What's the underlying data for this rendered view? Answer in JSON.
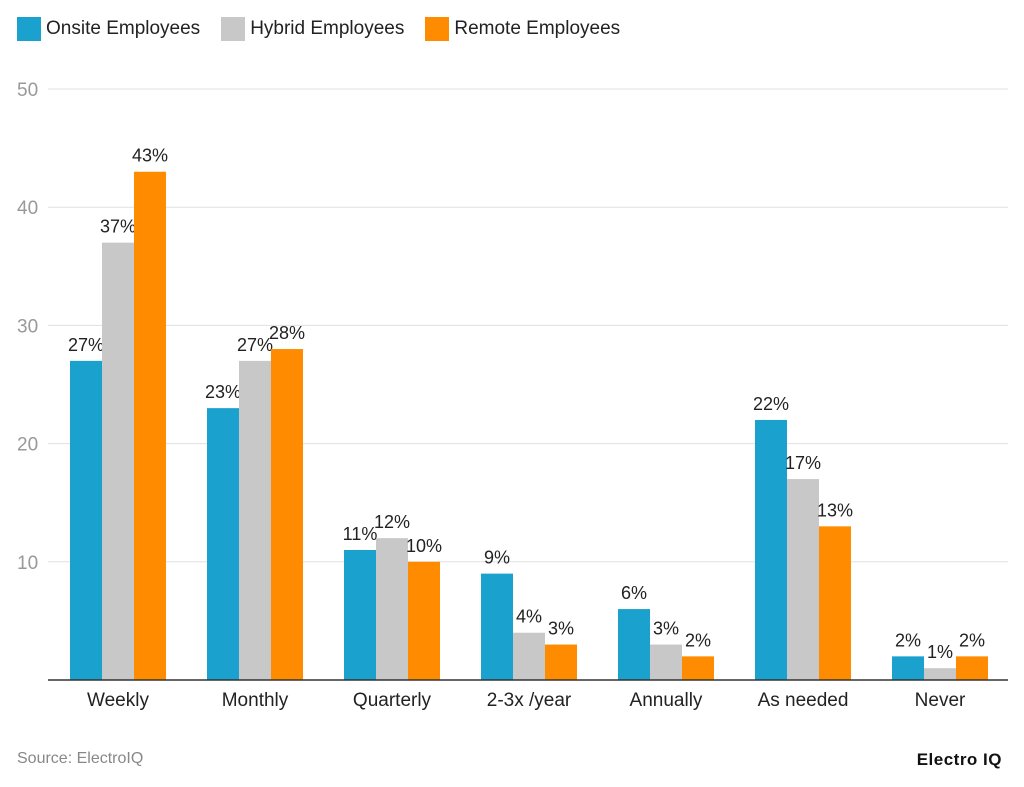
{
  "chart_data": {
    "type": "bar",
    "categories": [
      "Weekly",
      "Monthly",
      "Quarterly",
      "2-3x /year",
      "Annually",
      "As needed",
      "Never"
    ],
    "series": [
      {
        "name": "Onsite Employees",
        "color": "#1ba1cd",
        "values": [
          27,
          23,
          11,
          9,
          6,
          22,
          2
        ]
      },
      {
        "name": "Hybrid Employees",
        "color": "#c8c8c8",
        "values": [
          37,
          27,
          12,
          4,
          3,
          17,
          1
        ]
      },
      {
        "name": "Remote Employees",
        "color": "#ff8c00",
        "values": [
          43,
          28,
          10,
          3,
          2,
          13,
          2
        ]
      }
    ],
    "ylim": [
      0,
      50
    ],
    "yticks": [
      10,
      20,
      30,
      40,
      50
    ],
    "grid": true,
    "legend": "top-left",
    "data_label_suffix": "%"
  },
  "source": "Source: ElectroIQ",
  "logo": "Electro IQ"
}
